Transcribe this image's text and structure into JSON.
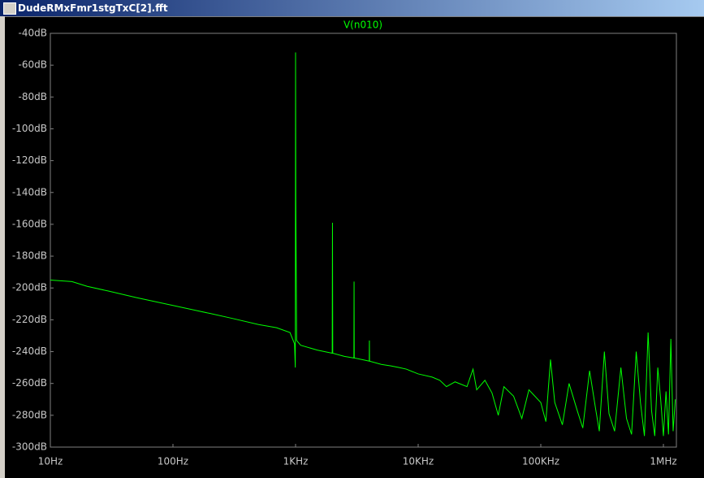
{
  "window_title": "DudeRMxFmr1stgTxC[2].fft",
  "chart_data": {
    "type": "line",
    "title": "V(n010)",
    "xscale": "log",
    "grid": false,
    "xlim": [
      10,
      1276000
    ],
    "ylim": [
      -300,
      -40
    ],
    "xticks": [
      {
        "value": 10,
        "label": "10Hz"
      },
      {
        "value": 100,
        "label": "100Hz"
      },
      {
        "value": 1000,
        "label": "1KHz"
      },
      {
        "value": 10000,
        "label": "10KHz"
      },
      {
        "value": 100000,
        "label": "100KHz"
      },
      {
        "value": 1000000,
        "label": "1MHz"
      }
    ],
    "yticks": [
      {
        "value": -40,
        "label": "-40dB"
      },
      {
        "value": -60,
        "label": "-60dB"
      },
      {
        "value": -80,
        "label": "-80dB"
      },
      {
        "value": -100,
        "label": "-100dB"
      },
      {
        "value": -120,
        "label": "-120dB"
      },
      {
        "value": -140,
        "label": "-140dB"
      },
      {
        "value": -160,
        "label": "-160dB"
      },
      {
        "value": -180,
        "label": "-180dB"
      },
      {
        "value": -200,
        "label": "-200dB"
      },
      {
        "value": -220,
        "label": "-220dB"
      },
      {
        "value": -240,
        "label": "-240dB"
      },
      {
        "value": -260,
        "label": "-260dB"
      },
      {
        "value": -280,
        "label": "-280dB"
      },
      {
        "value": -300,
        "label": "-300dB"
      }
    ],
    "series": [
      {
        "color": "#00ff00",
        "x": [
          10,
          15,
          20,
          30,
          50,
          100,
          200,
          300,
          500,
          700,
          900,
          980,
          995,
          1000,
          1005,
          1020,
          1100,
          1500,
          1990,
          2000,
          2010,
          2500,
          2990,
          3000,
          3010,
          3500,
          3990,
          4000,
          4010,
          5000,
          6000,
          7000,
          8000,
          10000,
          13000,
          15000,
          17000,
          20000,
          25000,
          28000,
          30000,
          35000,
          40000,
          45000,
          50000,
          60000,
          70000,
          80000,
          100000,
          110000,
          120000,
          130000,
          150000,
          170000,
          200000,
          220000,
          250000,
          280000,
          300000,
          330000,
          360000,
          400000,
          450000,
          500000,
          550000,
          600000,
          650000,
          700000,
          750000,
          800000,
          850000,
          900000,
          950000,
          1000000,
          1050000,
          1100000,
          1150000,
          1200000,
          1250000
        ],
        "values": [
          -195,
          -196,
          -199,
          -202,
          -206,
          -211,
          -216,
          -219,
          -223,
          -225,
          -228,
          -235,
          -250,
          -52,
          -145,
          -233,
          -236,
          -239,
          -241,
          -159,
          -241,
          -243,
          -244,
          -196,
          -244,
          -245,
          -246,
          -233,
          -246,
          -248,
          -249,
          -250,
          -251,
          -254,
          -256,
          -258,
          -262,
          -259,
          -262,
          -251,
          -264,
          -258,
          -266,
          -280,
          -262,
          -268,
          -282,
          -264,
          -272,
          -284,
          -245,
          -272,
          -286,
          -260,
          -278,
          -288,
          -252,
          -276,
          -290,
          -240,
          -279,
          -290,
          -250,
          -282,
          -292,
          -240,
          -272,
          -293,
          -228,
          -277,
          -293,
          -250,
          -270,
          -293,
          -265,
          -292,
          -232,
          -290,
          -270
        ]
      }
    ]
  }
}
